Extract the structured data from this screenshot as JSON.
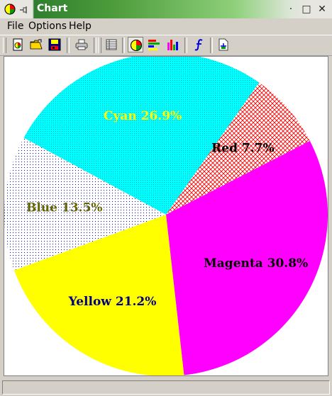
{
  "window": {
    "title": "Chart",
    "controls": {
      "minimize": "·",
      "maximize": "□",
      "close": "✕"
    }
  },
  "menu": [
    "File",
    "Options",
    "Help"
  ],
  "toolbar": {
    "tools": [
      "new-chart-icon",
      "open-folder-icon",
      "save-disk-icon",
      "print-icon",
      "data-table-icon",
      "pie-chart-icon",
      "horizontal-bar-chart-icon",
      "vertical-bar-chart-icon",
      "function-icon",
      "copy-chart-icon"
    ],
    "pressed": "pie-chart-icon"
  },
  "chart_data": {
    "type": "pie",
    "slices": [
      {
        "name": "Cyan",
        "label": "Cyan 26.9%",
        "value": 26.9,
        "color": "#00ffff",
        "pattern": "fine-dots",
        "label_color": "#ffff00"
      },
      {
        "name": "Red",
        "label": "Red 7.7%",
        "value": 7.7,
        "color": "#ff0000",
        "pattern": "crosshatch",
        "label_color": "#000000"
      },
      {
        "name": "Magenta",
        "label": "Magenta 30.8%",
        "value": 30.8,
        "color": "#ff00ff",
        "pattern": "solid",
        "label_color": "#000000"
      },
      {
        "name": "Yellow",
        "label": "Yellow 21.2%",
        "value": 21.2,
        "color": "#ffff00",
        "pattern": "solid",
        "label_color": "#000080"
      },
      {
        "name": "Blue",
        "label": "Blue 13.5%",
        "value": 13.5,
        "color": "#0000cc",
        "pattern": "sparse-dots",
        "label_color": "#666600"
      }
    ],
    "start_angle_deg": -151.6,
    "direction": "clockwise"
  }
}
